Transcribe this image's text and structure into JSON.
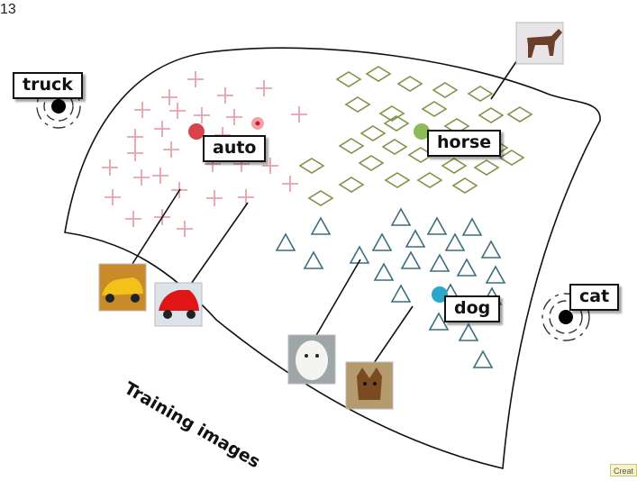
{
  "slide_number": "13",
  "caption": "Training images",
  "corner_tab": "Creat",
  "labels": {
    "truck": "truck",
    "auto": "auto",
    "horse": "horse",
    "dog": "dog",
    "cat": "cat"
  },
  "colors": {
    "auto_markers": "#e8a0ac",
    "auto_centroid": "#d9444a",
    "horse_markers": "#7f9448",
    "horse_centroid": "#8dbb5a",
    "dog_markers": "#3d6e7d",
    "dog_centroid": "#2aa7c9",
    "outlier_point": "#000000"
  },
  "icons": {
    "auto_marker": "plus-icon",
    "horse_marker": "diamond-icon",
    "dog_marker": "triangle-icon",
    "outlier": "concentric-ring-icon"
  }
}
